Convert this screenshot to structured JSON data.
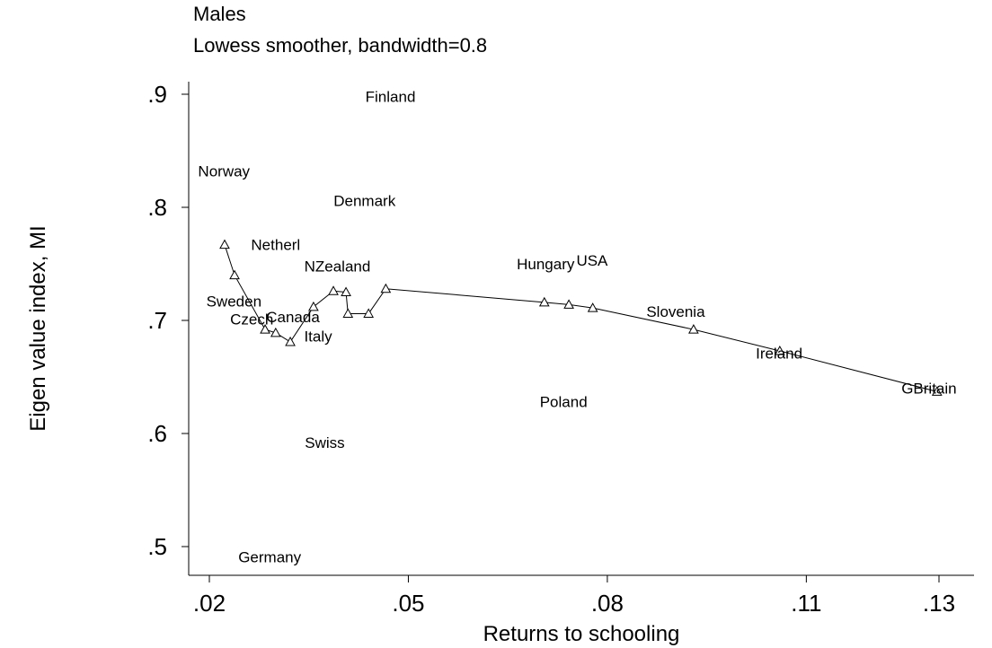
{
  "chart_data": {
    "type": "scatter",
    "title": "Males",
    "subtitle": "Lowess smoother, bandwidth=0.8",
    "xlabel": "Returns to schooling",
    "ylabel": "Eigen value index, MI",
    "xlim": [
      0.017,
      0.133
    ],
    "ylim": [
      0.49,
      0.91
    ],
    "xticks": [
      0.02,
      0.05,
      0.08,
      0.11,
      0.13
    ],
    "xtick_labels": [
      ".02",
      ".05",
      ".08",
      ".11",
      ".13"
    ],
    "yticks": [
      0.5,
      0.6,
      0.7,
      0.8,
      0.9
    ],
    "ytick_labels": [
      ".5",
      ".6",
      ".7",
      ".8",
      ".9"
    ],
    "grid": false,
    "points": [
      {
        "label": "Finland",
        "x": 0.0473,
        "y": 0.898
      },
      {
        "label": "Norway",
        "x": 0.0222,
        "y": 0.832
      },
      {
        "label": "Denmark",
        "x": 0.0434,
        "y": 0.806
      },
      {
        "label": "Netherl",
        "x": 0.03,
        "y": 0.767
      },
      {
        "label": "NZealand",
        "x": 0.0393,
        "y": 0.748
      },
      {
        "label": "Hungary",
        "x": 0.0707,
        "y": 0.75
      },
      {
        "label": "USA",
        "x": 0.0777,
        "y": 0.753
      },
      {
        "label": "Sweden",
        "x": 0.0237,
        "y": 0.717
      },
      {
        "label": "Slovenia",
        "x": 0.0903,
        "y": 0.708
      },
      {
        "label": "Czech",
        "x": 0.0264,
        "y": 0.701
      },
      {
        "label": "Canada",
        "x": 0.0326,
        "y": 0.703
      },
      {
        "label": "Italy",
        "x": 0.0364,
        "y": 0.686
      },
      {
        "label": "Ireland",
        "x": 0.1059,
        "y": 0.671
      },
      {
        "label": "GBritain",
        "x": 0.1285,
        "y": 0.64
      },
      {
        "label": "Poland",
        "x": 0.0734,
        "y": 0.628
      },
      {
        "label": "Swiss",
        "x": 0.0374,
        "y": 0.592
      },
      {
        "label": "Germany",
        "x": 0.0291,
        "y": 0.491
      }
    ],
    "lowess": {
      "name": "Lowess smoother",
      "marker": "triangle",
      "x": [
        0.0223,
        0.0238,
        0.0284,
        0.03,
        0.0322,
        0.0357,
        0.0387,
        0.0406,
        0.0409,
        0.044,
        0.0466,
        0.0705,
        0.0742,
        0.0778,
        0.093,
        0.106,
        0.1297
      ],
      "y": [
        0.767,
        0.74,
        0.692,
        0.689,
        0.681,
        0.712,
        0.726,
        0.725,
        0.706,
        0.706,
        0.728,
        0.716,
        0.714,
        0.711,
        0.692,
        0.673,
        0.637
      ]
    }
  }
}
